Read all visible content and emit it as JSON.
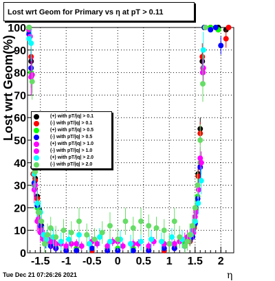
{
  "title": "Lost wrt Geom for Primary vs  η at pT > 0.11",
  "timestamp": "Tue Dec 21 07:26:26 2021",
  "chart_data": {
    "type": "scatter",
    "title": "Lost wrt Geom for Primary vs  η at pT > 0.11",
    "xlabel": "η",
    "ylabel": "Lost wrt Geom(%)",
    "xlim": [
      -1.75,
      2.25
    ],
    "ylim": [
      0,
      100
    ],
    "xticks": [
      "-1.5",
      "-1",
      "-0.5",
      "0",
      "0.5",
      "1",
      "1.5",
      "2"
    ],
    "xtick_values": [
      -1.5,
      -1,
      -0.5,
      0,
      0.5,
      1,
      1.5,
      2
    ],
    "yticks": [
      "0",
      "10",
      "20",
      "30",
      "40",
      "50",
      "60",
      "70",
      "80",
      "90",
      "100"
    ],
    "ytick_values": [
      0,
      10,
      20,
      30,
      40,
      50,
      60,
      70,
      80,
      90,
      100
    ],
    "grid": true,
    "legend_position": "left-middle",
    "series": [
      {
        "name": "(+) with pT/|q| > 0.1",
        "color": "#000000",
        "x": [
          -1.72,
          -1.68,
          -1.64,
          -1.6,
          -1.56,
          -1.52,
          -1.48,
          -1.44,
          -1.4,
          -1.3,
          -1.2,
          -1.0,
          -0.8,
          -0.5,
          -0.2,
          0.0,
          0.3,
          0.6,
          0.9,
          1.1,
          1.3,
          1.4,
          1.48,
          1.52,
          1.56,
          1.6,
          1.64,
          1.68,
          1.8,
          1.95,
          2.1
        ],
        "y": [
          100,
          85,
          38,
          33,
          25,
          19,
          12,
          8,
          6,
          4,
          2,
          1,
          1,
          1,
          1,
          1,
          1,
          1,
          1,
          2,
          3,
          5,
          12,
          20,
          35,
          55,
          85,
          100,
          100,
          100,
          99
        ],
        "err": [
          0,
          6,
          5,
          4,
          4,
          3,
          3,
          2,
          2,
          2,
          1,
          1,
          1,
          1,
          1,
          1,
          1,
          1,
          1,
          1,
          1,
          2,
          2,
          3,
          4,
          5,
          6,
          0,
          0,
          0,
          0
        ]
      },
      {
        "name": "(-) with pT/|q| > 0.1",
        "color": "#ff0000",
        "x": [
          -1.72,
          -1.68,
          -1.64,
          -1.6,
          -1.56,
          -1.52,
          -1.48,
          -1.44,
          -1.4,
          -1.3,
          -1.2,
          -1.0,
          -0.8,
          -0.5,
          -0.2,
          0.0,
          0.3,
          0.6,
          0.9,
          1.1,
          1.3,
          1.4,
          1.48,
          1.52,
          1.56,
          1.6,
          1.64,
          1.68,
          1.8,
          1.95,
          2.1,
          2.15
        ],
        "y": [
          99,
          87,
          35,
          32,
          24,
          18,
          11,
          7,
          6,
          3,
          2,
          1,
          1,
          1,
          1,
          1,
          1,
          1,
          1,
          2,
          3,
          5,
          11,
          19,
          34,
          53,
          87,
          100,
          100,
          99,
          95,
          100
        ],
        "err": [
          0,
          6,
          5,
          4,
          4,
          3,
          3,
          2,
          2,
          2,
          1,
          1,
          1,
          1,
          1,
          1,
          1,
          1,
          1,
          1,
          1,
          2,
          2,
          3,
          4,
          5,
          6,
          0,
          0,
          0,
          4,
          0
        ]
      },
      {
        "name": "(+) with pT/|q| > 0.5",
        "color": "#00ff00",
        "x": [
          -1.72,
          -1.68,
          -1.62,
          -1.56,
          -1.5,
          -1.44,
          -1.4,
          -1.3,
          -1.2,
          -1.0,
          -0.8,
          -0.5,
          -0.2,
          0.0,
          0.3,
          0.6,
          0.9,
          1.1,
          1.3,
          1.45,
          1.5,
          1.55,
          1.6,
          1.65,
          1.68,
          1.8,
          1.95
        ],
        "y": [
          98,
          80,
          30,
          20,
          12,
          8,
          6,
          4,
          3,
          2,
          2,
          2,
          2,
          2,
          2,
          2,
          2,
          3,
          4,
          8,
          14,
          25,
          40,
          82,
          100,
          100,
          99
        ],
        "err": [
          0,
          7,
          6,
          5,
          4,
          3,
          3,
          2,
          2,
          1,
          1,
          1,
          1,
          1,
          1,
          1,
          1,
          1,
          2,
          2,
          3,
          4,
          5,
          6,
          0,
          0,
          0
        ]
      },
      {
        "name": "(-) with pT/|q| > 0.5",
        "color": "#0000ff",
        "x": [
          -1.72,
          -1.68,
          -1.62,
          -1.56,
          -1.5,
          -1.44,
          -1.4,
          -1.3,
          -1.2,
          -1.0,
          -0.8,
          -0.5,
          -0.2,
          0.0,
          0.3,
          0.6,
          0.9,
          1.1,
          1.3,
          1.45,
          1.5,
          1.55,
          1.6,
          1.65,
          1.68,
          1.8,
          1.9,
          2.0
        ],
        "y": [
          97,
          82,
          31,
          21,
          12,
          8,
          5,
          3,
          2,
          1,
          1,
          2,
          1,
          1,
          1,
          1,
          2,
          2,
          3,
          7,
          13,
          24,
          38,
          80,
          100,
          99,
          100,
          92
        ],
        "err": [
          0,
          7,
          6,
          5,
          4,
          3,
          3,
          2,
          2,
          1,
          1,
          1,
          1,
          1,
          1,
          1,
          1,
          1,
          2,
          2,
          3,
          4,
          5,
          6,
          0,
          0,
          0,
          4
        ]
      },
      {
        "name": "(+) with pT/|q| > 1.0",
        "color": "#ff00ff",
        "x": [
          -1.72,
          -1.68,
          -1.62,
          -1.56,
          -1.5,
          -1.44,
          -1.4,
          -1.3,
          -1.2,
          -1.0,
          -0.8,
          -0.5,
          -0.2,
          0.0,
          0.3,
          0.6,
          0.9,
          1.1,
          1.3,
          1.45,
          1.5,
          1.55,
          1.6,
          1.65,
          1.7
        ],
        "y": [
          99,
          78,
          28,
          14,
          9,
          6,
          6,
          5,
          4,
          3,
          4,
          5,
          3,
          5,
          4,
          3,
          4,
          4,
          6,
          10,
          16,
          30,
          42,
          80,
          100
        ],
        "err": [
          0,
          8,
          6,
          5,
          4,
          3,
          3,
          3,
          3,
          2,
          2,
          2,
          2,
          2,
          2,
          2,
          2,
          2,
          3,
          3,
          3,
          4,
          5,
          6,
          0
        ]
      },
      {
        "name": "(-) with pT/|q| > 1.0",
        "color": "#ff00ff",
        "x": [
          -1.7,
          -1.66,
          -1.6,
          -1.54,
          -1.48,
          -1.42,
          -1.35,
          -1.25,
          -1.1,
          -0.9,
          -0.7,
          -0.4,
          -0.1,
          0.1,
          0.4,
          0.7,
          1.0,
          1.2,
          1.35,
          1.47,
          1.52,
          1.57,
          1.62,
          1.66
        ],
        "y": [
          96,
          79,
          30,
          15,
          10,
          7,
          6,
          5,
          4,
          4,
          3,
          4,
          5,
          3,
          4,
          5,
          4,
          5,
          7,
          9,
          18,
          28,
          40,
          82
        ],
        "err": [
          0,
          8,
          6,
          5,
          4,
          3,
          3,
          3,
          2,
          2,
          2,
          2,
          2,
          2,
          2,
          2,
          2,
          2,
          3,
          3,
          3,
          4,
          5,
          6
        ]
      },
      {
        "name": "(+) with pT/|q| > 2.0",
        "color": "#00ffff",
        "x": [
          -1.72,
          -1.68,
          -1.62,
          -1.56,
          -1.5,
          -1.44,
          -1.38,
          -1.25,
          -1.1,
          -0.95,
          -0.75,
          -0.55,
          -0.35,
          -0.15,
          0.05,
          0.25,
          0.45,
          0.65,
          0.85,
          1.05,
          1.25,
          1.42,
          1.5,
          1.56,
          1.62,
          1.66
        ],
        "y": [
          95,
          93,
          35,
          22,
          18,
          8,
          6,
          7,
          5,
          6,
          8,
          4,
          7,
          5,
          6,
          4,
          5,
          6,
          5,
          7,
          6,
          8,
          14,
          22,
          32,
          90
        ],
        "err": [
          0,
          8,
          7,
          6,
          5,
          4,
          4,
          4,
          4,
          4,
          5,
          4,
          4,
          4,
          4,
          4,
          4,
          4,
          4,
          4,
          4,
          4,
          5,
          5,
          6,
          8
        ]
      },
      {
        "name": "(-) with pT/|q| > 2.0",
        "color": "#66dd66",
        "x": [
          -1.72,
          -1.66,
          -1.6,
          -1.54,
          -1.48,
          -1.42,
          -1.36,
          -1.3,
          -1.2,
          -1.05,
          -0.9,
          -0.75,
          -0.6,
          -0.45,
          -0.3,
          -0.15,
          0.0,
          0.15,
          0.3,
          0.45,
          0.6,
          0.75,
          0.9,
          1.0,
          1.1,
          1.2,
          1.3,
          1.35,
          1.4,
          1.45,
          1.5,
          1.55,
          1.6,
          1.65,
          1.7
        ],
        "y": [
          100,
          76,
          36,
          18,
          14,
          4,
          8,
          11,
          7,
          10,
          9,
          14,
          8,
          6,
          9,
          12,
          6,
          14,
          11,
          14,
          12,
          11,
          10,
          4,
          14,
          7,
          3,
          5,
          8,
          12,
          20,
          30,
          50,
          75,
          100
        ],
        "err": [
          0,
          8,
          7,
          6,
          5,
          4,
          5,
          5,
          5,
          5,
          5,
          6,
          5,
          5,
          5,
          6,
          5,
          6,
          5,
          6,
          5,
          5,
          5,
          4,
          6,
          5,
          4,
          4,
          5,
          5,
          6,
          6,
          7,
          8,
          0
        ]
      }
    ]
  }
}
